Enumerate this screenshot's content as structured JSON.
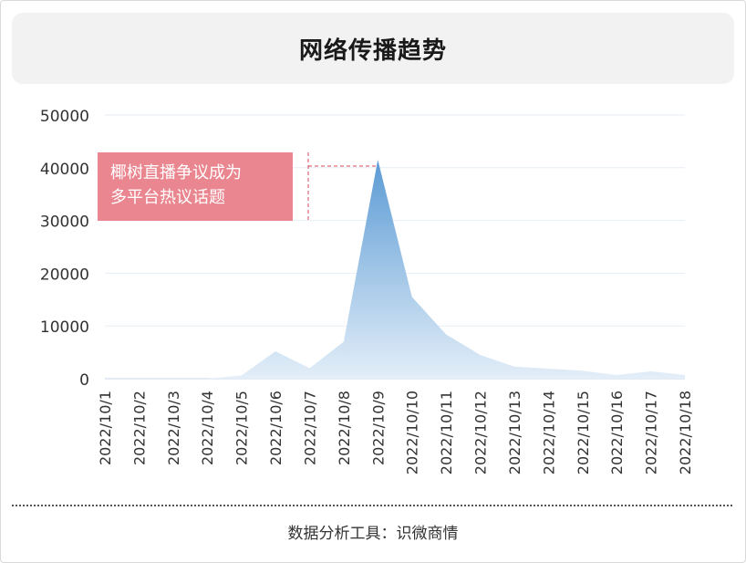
{
  "header": {
    "title": "网络传播趋势"
  },
  "footer": {
    "source": "数据分析工具：识微商情"
  },
  "colors": {
    "area_top": "#5b9bd5",
    "area_bottom": "#e3eef8",
    "annotation_bg": "#ea868f",
    "annotation_line": "#d94a5a",
    "grid": "#e6eef6"
  },
  "chart_data": {
    "type": "area",
    "title": "网络传播趋势",
    "xlabel": "",
    "ylabel": "",
    "ylim": [
      0,
      50000
    ],
    "yticks": [
      "0",
      "10000",
      "20000",
      "30000",
      "40000",
      "50000"
    ],
    "grid": true,
    "categories": [
      "2022/10/1",
      "2022/10/2",
      "2022/10/3",
      "2022/10/4",
      "2022/10/5",
      "2022/10/6",
      "2022/10/7",
      "2022/10/8",
      "2022/10/9",
      "2022/10/10",
      "2022/10/11",
      "2022/10/12",
      "2022/10/13",
      "2022/10/14",
      "2022/10/15",
      "2022/10/16",
      "2022/10/17",
      "2022/10/18"
    ],
    "values": [
      0,
      0,
      0,
      0,
      600,
      5200,
      2000,
      7000,
      41500,
      15500,
      8400,
      4500,
      2300,
      1900,
      1500,
      700,
      1400,
      700
    ],
    "annotation": {
      "lines": [
        "椰树直播争议成为",
        "多平台热议话题"
      ],
      "category": "2022/10/9"
    }
  }
}
